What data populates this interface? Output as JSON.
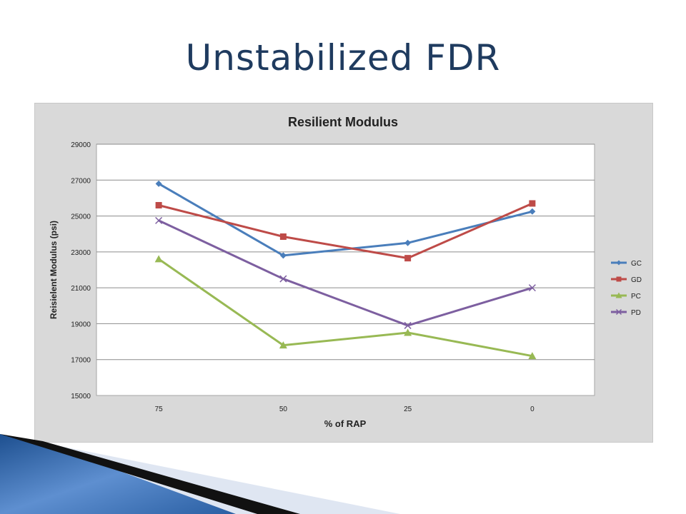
{
  "slide": {
    "title": "Unstabilized FDR"
  },
  "chart_data": {
    "type": "line",
    "title": "Resilient Modulus",
    "xlabel": "% of RAP",
    "ylabel": "Reisielent Modulus (psi)",
    "categories": [
      "75",
      "50",
      "25",
      "0"
    ],
    "ylim": [
      15000,
      29000
    ],
    "yticks": [
      15000,
      17000,
      19000,
      21000,
      23000,
      25000,
      27000,
      29000
    ],
    "grid": true,
    "legend_position": "right",
    "series": [
      {
        "name": "GC",
        "values": [
          26800,
          22800,
          23500,
          25250
        ],
        "color": "#4a7ebb",
        "marker": "diamond"
      },
      {
        "name": "GD",
        "values": [
          25600,
          23850,
          22650,
          25700
        ],
        "color": "#be4b48",
        "marker": "square"
      },
      {
        "name": "PC",
        "values": [
          22600,
          17800,
          18500,
          17200
        ],
        "color": "#98b954",
        "marker": "triangle"
      },
      {
        "name": "PD",
        "values": [
          24750,
          21500,
          18900,
          21000
        ],
        "color": "#7d5fa0",
        "marker": "x"
      }
    ]
  }
}
